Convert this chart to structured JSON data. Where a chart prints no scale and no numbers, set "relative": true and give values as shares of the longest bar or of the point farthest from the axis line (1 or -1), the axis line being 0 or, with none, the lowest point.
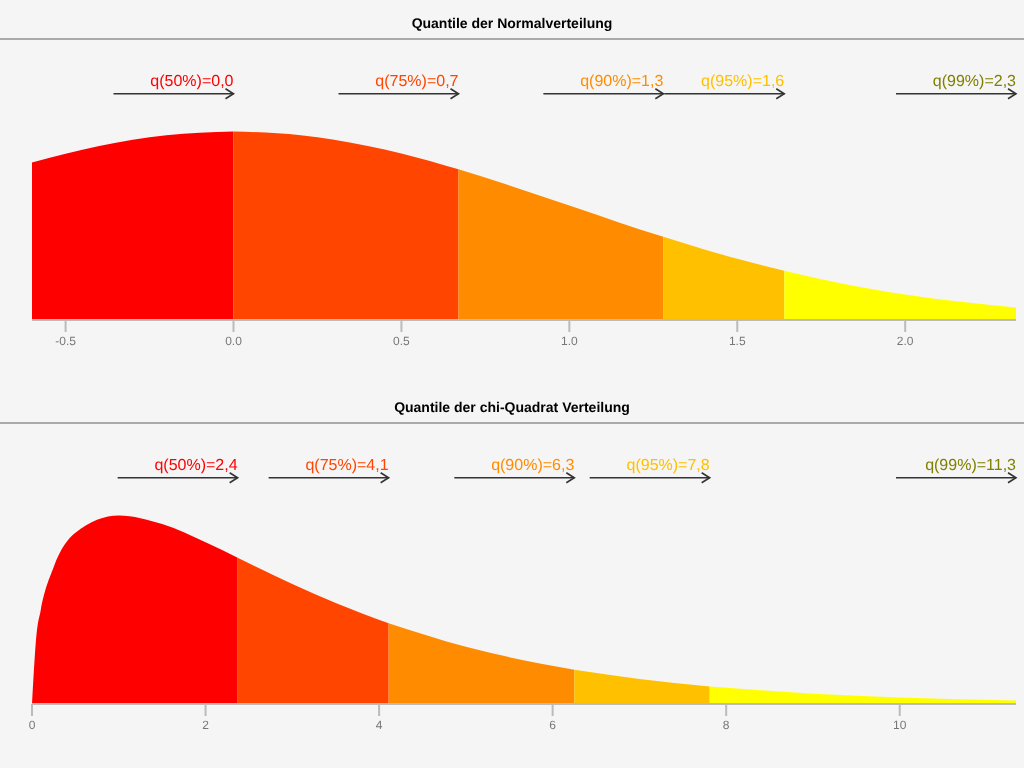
{
  "chart_data": [
    {
      "type": "area",
      "title": "Quantile der Normalverteilung",
      "relative": true,
      "xlim": [
        -0.6,
        2.33
      ],
      "xticks": [
        -0.5,
        {
          "value": 0,
          "label": "0.0"
        },
        0.5,
        {
          "value": 1,
          "label": "1.0"
        },
        1.5,
        {
          "value": 2,
          "label": "2.0"
        }
      ],
      "series": [
        {
          "color": "#ff0000",
          "x": [
            -0.6,
            -0.4,
            -0.2,
            0
          ],
          "values": [
            0.835,
            0.923,
            0.98,
            1
          ]
        },
        {
          "color": "#ff4500",
          "x": [
            0,
            0.2,
            0.4,
            0.5,
            0.67
          ],
          "values": [
            1,
            0.98,
            0.923,
            0.883,
            0.799
          ]
        },
        {
          "color": "#ff8c00",
          "x": [
            0.67,
            0.8,
            1.0,
            1.15,
            1.28
          ],
          "values": [
            0.799,
            0.726,
            0.607,
            0.516,
            0.441
          ]
        },
        {
          "color": "#ffc000",
          "x": [
            1.28,
            1.4,
            1.5,
            1.64
          ],
          "values": [
            0.441,
            0.375,
            0.325,
            0.261
          ]
        },
        {
          "color": "#ffff00",
          "x": [
            1.64,
            1.8,
            2.0,
            2.33
          ],
          "values": [
            0.261,
            0.198,
            0.135,
            0.066
          ]
        }
      ],
      "annotations": [
        "q(50%)=0,0",
        "q(75%)=0,7",
        "q(90%)=1,3",
        "q(95%)=1,6",
        "q(99%)=2,3"
      ]
    },
    {
      "type": "area",
      "title": "Quantile der chi-Quadrat Verteilung",
      "relative": true,
      "xlim": [
        0,
        11.34
      ],
      "xticks": [
        0,
        2,
        4,
        6,
        8,
        10
      ],
      "series": [
        {
          "color": "#ff0000",
          "x": [
            0,
            0.05,
            0.1,
            0.25,
            0.5,
            1,
            1.5,
            2,
            2.37
          ],
          "values": [
            0,
            0.36,
            0.496,
            0.727,
            0.908,
            1,
            0.954,
            0.858,
            0.776
          ]
        },
        {
          "color": "#ff4500",
          "x": [
            2.37,
            3,
            3.5,
            4.11
          ],
          "values": [
            0.776,
            0.637,
            0.536,
            0.428
          ]
        },
        {
          "color": "#ff8c00",
          "x": [
            4.11,
            5,
            6.25
          ],
          "values": [
            0.428,
            0.303,
            0.181
          ]
        },
        {
          "color": "#ffc000",
          "x": [
            6.25,
            7,
            7.81
          ],
          "values": [
            0.181,
            0.132,
            0.093
          ]
        },
        {
          "color": "#ffff00",
          "x": [
            7.81,
            9,
            10,
            11.34
          ],
          "values": [
            0.093,
            0.055,
            0.035,
            0.019
          ]
        }
      ],
      "annotations": [
        "q(50%)=2,4",
        "q(75%)=4,1",
        "q(90%)=6,3",
        "q(95%)=7,8",
        "q(99%)=11,3"
      ]
    }
  ]
}
